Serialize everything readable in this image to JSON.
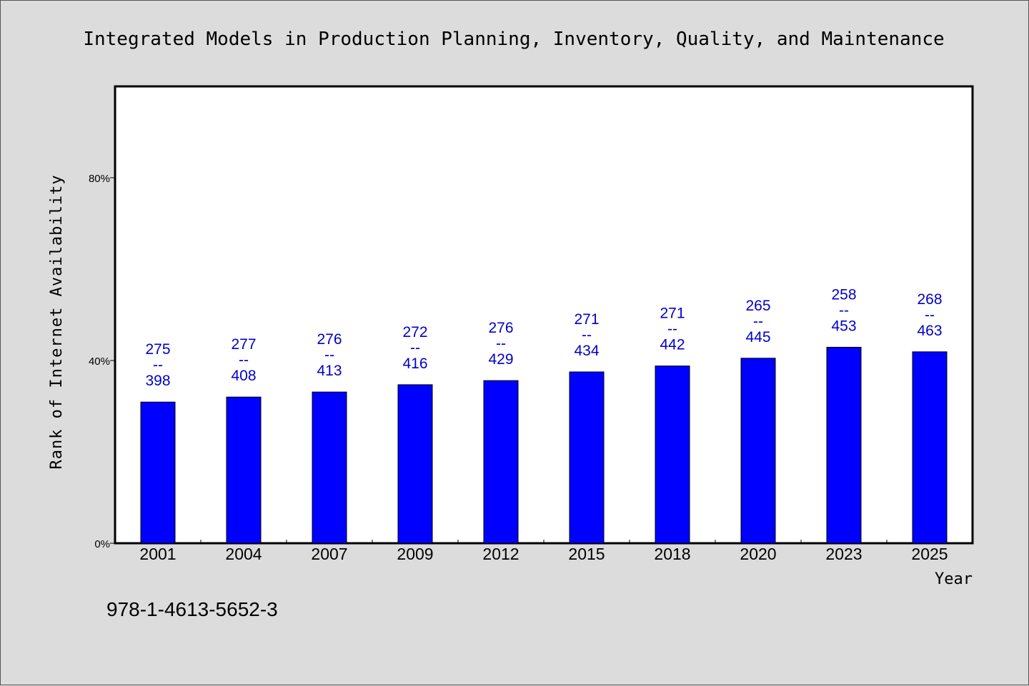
{
  "colors": {
    "background": "#dcdcdc",
    "plot_background": "#ffffff",
    "bar": "#0000ff",
    "label_text": "#0000cc"
  },
  "footnote": "978-1-4613-5652-3",
  "chart_data": {
    "type": "bar",
    "title": "Integrated Models in Production Planning, Inventory, Quality, and Maintenance",
    "xlabel": "Year",
    "ylabel": "Rank of Internet Availability",
    "categories": [
      "2001",
      "2004",
      "2007",
      "2009",
      "2012",
      "2015",
      "2018",
      "2020",
      "2023",
      "2025"
    ],
    "values": [
      30.9,
      32.0,
      33.1,
      34.7,
      35.6,
      37.5,
      38.8,
      40.5,
      42.9,
      41.9
    ],
    "data_labels": [
      {
        "top": "275",
        "sep": "--",
        "bottom": "398"
      },
      {
        "top": "277",
        "sep": "--",
        "bottom": "408"
      },
      {
        "top": "276",
        "sep": "--",
        "bottom": "413"
      },
      {
        "top": "272",
        "sep": "--",
        "bottom": "416"
      },
      {
        "top": "276",
        "sep": "--",
        "bottom": "429"
      },
      {
        "top": "271",
        "sep": "--",
        "bottom": "434"
      },
      {
        "top": "271",
        "sep": "--",
        "bottom": "442"
      },
      {
        "top": "265",
        "sep": "--",
        "bottom": "445"
      },
      {
        "top": "258",
        "sep": "--",
        "bottom": "453"
      },
      {
        "top": "268",
        "sep": "--",
        "bottom": "463"
      }
    ],
    "ylim": [
      0,
      100
    ],
    "yticks": [
      0,
      40,
      80
    ],
    "ytick_labels": [
      "0%",
      "40%",
      "80%"
    ],
    "grid": false,
    "legend": "none"
  }
}
